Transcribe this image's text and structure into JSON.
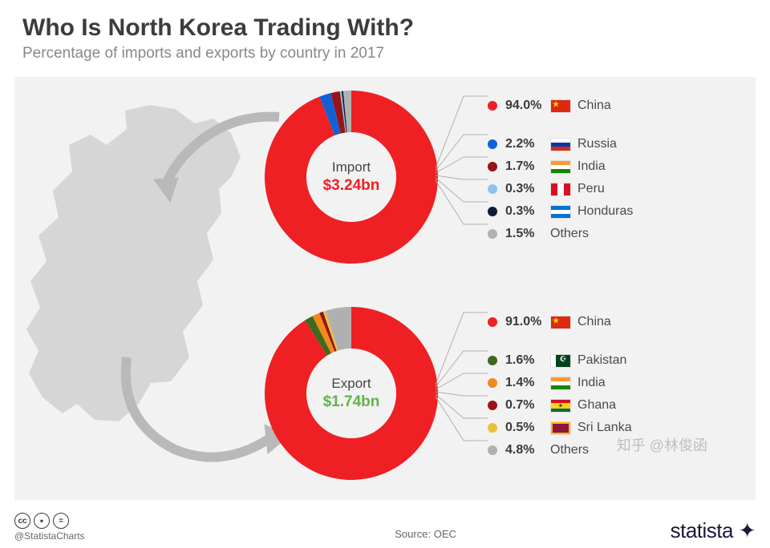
{
  "header": {
    "title": "Who Is North Korea Trading With?",
    "subtitle": "Percentage of imports and exports by country in 2017"
  },
  "background_color": "#f2f2f2",
  "map_fill": "#d6d6d6",
  "arrow_color": "#b9b9b9",
  "import_chart": {
    "type": "donut",
    "label": "Import",
    "value": "$3.24bn",
    "value_color": "#ee2024",
    "inner_radius": 56,
    "outer_radius": 108,
    "slices": [
      {
        "name": "China",
        "pct": 94.0,
        "color": "#ee2024",
        "flag": "china"
      },
      {
        "name": "Russia",
        "pct": 2.2,
        "color": "#1160d6",
        "flag": "russia"
      },
      {
        "name": "India",
        "pct": 1.7,
        "color": "#991318",
        "flag": "india"
      },
      {
        "name": "Peru",
        "pct": 0.3,
        "color": "#8fc3ed",
        "flag": "peru"
      },
      {
        "name": "Honduras",
        "pct": 0.3,
        "color": "#0b1e36",
        "flag": "honduras"
      },
      {
        "name": "Others",
        "pct": 1.5,
        "color": "#b0b0b0",
        "flag": null
      }
    ]
  },
  "export_chart": {
    "type": "donut",
    "label": "Export",
    "value": "$1.74bn",
    "value_color": "#5fb548",
    "inner_radius": 56,
    "outer_radius": 108,
    "slices": [
      {
        "name": "China",
        "pct": 91.0,
        "color": "#ee2024",
        "flag": "china"
      },
      {
        "name": "Pakistan",
        "pct": 1.6,
        "color": "#3b6b1d",
        "flag": "pakistan"
      },
      {
        "name": "India",
        "pct": 1.4,
        "color": "#f08a1d",
        "flag": "india"
      },
      {
        "name": "Ghana",
        "pct": 0.7,
        "color": "#991318",
        "flag": "ghana"
      },
      {
        "name": "Sri Lanka",
        "pct": 0.5,
        "color": "#e9c23c",
        "flag": "srilanka"
      },
      {
        "name": "Others",
        "pct": 4.8,
        "color": "#b0b0b0",
        "flag": null
      }
    ]
  },
  "footer": {
    "handle": "@StatistaCharts",
    "source_label": "Source:",
    "source": "OEC",
    "brand": "statista",
    "cc": [
      "cc",
      "①",
      "="
    ]
  },
  "watermark": "知乎 @林俊函"
}
